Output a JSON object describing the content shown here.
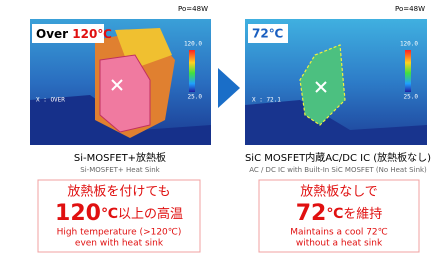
{
  "left": {
    "power": "Po=48W",
    "badge": {
      "prefix": "Over",
      "temp": "120℃"
    },
    "scale": {
      "max": "120.0",
      "min": "25.0"
    },
    "cursor": "X : OVER",
    "caption": "Si-MOSFET+放熱板",
    "caption_en": "Si-MOSFET+ Heat Sink",
    "result": {
      "lead": "放熱板を付けても",
      "value": "120",
      "unit": "℃",
      "tail": "以上の高温",
      "en1": "High temperature (>120℃)",
      "en2": "even with heat sink"
    }
  },
  "right": {
    "power": "Po=48W",
    "badge": {
      "temp": "72℃"
    },
    "scale": {
      "max": "120.0",
      "min": "25.0"
    },
    "cursor": "X : 72.1",
    "caption": "SiC MOSFET内蔵AC/DC IC (放熱板なし)",
    "caption_en": "AC / DC IC with Built-In SiC MOSFET (No Heat Sink)",
    "result": {
      "lead": "放熱板なしで",
      "value": "72",
      "unit": "℃",
      "tail": "を維持",
      "en1": "Maintains a cool 72℃",
      "en2": "without a heat sink"
    }
  }
}
